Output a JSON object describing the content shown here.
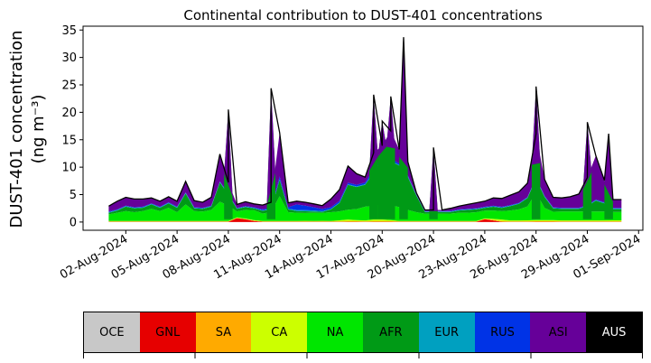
{
  "chart_data": {
    "type": "area",
    "title": "Continental contribution to DUST-401 concentrations",
    "ylabel_line1": "DUST-401 concentration",
    "ylabel_line2": "(ng m⁻³)",
    "ylim": [
      -1.5,
      35.7
    ],
    "yticks": [
      0,
      5,
      10,
      15,
      20,
      25,
      30,
      35
    ],
    "xlim": [
      "2024-07-30T12:00",
      "2024-09-01T06:00"
    ],
    "xticks": [
      "2024-08-02",
      "2024-08-05",
      "2024-08-08",
      "2024-08-11",
      "2024-08-14",
      "2024-08-17",
      "2024-08-20",
      "2024-08-23",
      "2024-08-26",
      "2024-08-29",
      "2024-09-01"
    ],
    "xtick_labels": [
      "02-Aug-2024",
      "05-Aug-2024",
      "08-Aug-2024",
      "11-Aug-2024",
      "14-Aug-2024",
      "17-Aug-2024",
      "20-Aug-2024",
      "23-Aug-2024",
      "26-Aug-2024",
      "29-Aug-2024",
      "01-Sep-2024"
    ],
    "colors": {
      "OCE": "#c8c8c8",
      "GNL": "#e60000",
      "SA": "#ffaa00",
      "CA": "#ccff00",
      "NA": "#00e600",
      "AFR": "#009a16",
      "EUR": "#00a0c0",
      "RUS": "#0033e6",
      "ASI": "#660099",
      "AUS": "#000000"
    },
    "total_color": "#000000",
    "x": [
      "2024-08-01T00",
      "2024-08-01T12",
      "2024-08-02T00",
      "2024-08-02T12",
      "2024-08-03T00",
      "2024-08-03T12",
      "2024-08-04T00",
      "2024-08-04T12",
      "2024-08-05T00",
      "2024-08-05T12",
      "2024-08-06T00",
      "2024-08-06T12",
      "2024-08-07T00",
      "2024-08-07T12",
      "2024-08-08T00",
      "2024-08-08T12",
      "2024-08-09T00",
      "2024-08-09T12",
      "2024-08-10T00",
      "2024-08-10T12",
      "2024-08-11T00",
      "2024-08-11T12",
      "2024-08-12T00",
      "2024-08-12T12",
      "2024-08-13T00",
      "2024-08-13T12",
      "2024-08-14T00",
      "2024-08-14T12",
      "2024-08-15T00",
      "2024-08-15T12",
      "2024-08-16T00",
      "2024-08-16T12",
      "2024-08-17T00",
      "2024-08-17T12",
      "2024-08-18T00",
      "2024-08-18T12",
      "2024-08-19T00",
      "2024-08-19T12",
      "2024-08-20T00",
      "2024-08-20T12",
      "2024-08-21T00",
      "2024-08-21T12",
      "2024-08-22T00",
      "2024-08-22T12",
      "2024-08-23T00",
      "2024-08-23T12",
      "2024-08-24T00",
      "2024-08-24T12",
      "2024-08-25T00",
      "2024-08-25T12",
      "2024-08-26T00",
      "2024-08-26T12",
      "2024-08-27T00",
      "2024-08-27T12",
      "2024-08-28T00",
      "2024-08-28T12",
      "2024-08-29T00",
      "2024-08-29T12",
      "2024-08-30T00",
      "2024-08-30T12",
      "2024-08-31T00"
    ],
    "series": [
      {
        "name": "OCE",
        "values": [
          0,
          0,
          0,
          0,
          0,
          0,
          0,
          0,
          0,
          0,
          0,
          0,
          0,
          0,
          0,
          0,
          0,
          0,
          0,
          0,
          0,
          0,
          0,
          0,
          0,
          0,
          0,
          0,
          0,
          0,
          0,
          0,
          0,
          0,
          0,
          0,
          0,
          0,
          0,
          0,
          0,
          0,
          0,
          0,
          0,
          0,
          0,
          0,
          0,
          0,
          0,
          0,
          0,
          0,
          0,
          0,
          0,
          0,
          0,
          0,
          0
        ]
      },
      {
        "name": "GNL",
        "values": [
          0.05,
          0.05,
          0.05,
          0.05,
          0.05,
          0.05,
          0.05,
          0.05,
          0.05,
          0.05,
          0.05,
          0.05,
          0.05,
          0.05,
          0.05,
          0.9,
          0.5,
          0.2,
          0.05,
          0.05,
          0.05,
          0.05,
          0.05,
          0.05,
          0.05,
          0.05,
          0.05,
          0.05,
          0.05,
          0.05,
          0.05,
          0.05,
          0.05,
          0.05,
          0.05,
          0.05,
          0.05,
          0.05,
          0.05,
          0.05,
          0.05,
          0.05,
          0.05,
          0.05,
          0.5,
          0.3,
          0.05,
          0.05,
          0.05,
          0.05,
          0.05,
          0.05,
          0.05,
          0.05,
          0.05,
          0.05,
          0.05,
          0.05,
          0.05,
          0.05,
          0.05
        ]
      },
      {
        "name": "SA",
        "values": [
          0.05,
          0.05,
          0.05,
          0.05,
          0.05,
          0.05,
          0.05,
          0.05,
          0.05,
          0.05,
          0.05,
          0.05,
          0.05,
          0.05,
          0.05,
          0.05,
          0.05,
          0.05,
          0.05,
          0.05,
          0.05,
          0.05,
          0.05,
          0.05,
          0.05,
          0.05,
          0.05,
          0.05,
          0.1,
          0.1,
          0.05,
          0.1,
          0.1,
          0.1,
          0.05,
          0.05,
          0.05,
          0.05,
          0.05,
          0.05,
          0.05,
          0.05,
          0.05,
          0.05,
          0.05,
          0.1,
          0.1,
          0.05,
          0.05,
          0.05,
          0.1,
          0.1,
          0.1,
          0.05,
          0.05,
          0.05,
          0.05,
          0.05,
          0.05,
          0.05,
          0.05
        ]
      },
      {
        "name": "CA",
        "values": [
          0.1,
          0.1,
          0.1,
          0.1,
          0.1,
          0.1,
          0.1,
          0.1,
          0.1,
          0.1,
          0.1,
          0.1,
          0.1,
          0.1,
          0.1,
          0.1,
          0.1,
          0.1,
          0.1,
          0.1,
          0.1,
          0.1,
          0.1,
          0.1,
          0.1,
          0.1,
          0.1,
          0.2,
          0.3,
          0.2,
          0.2,
          0.3,
          0.3,
          0.2,
          0.1,
          0.1,
          0.1,
          0.1,
          0.1,
          0.1,
          0.1,
          0.1,
          0.1,
          0.1,
          0.1,
          0.2,
          0.3,
          0.2,
          0.2,
          0.2,
          0.2,
          0.2,
          0.2,
          0.2,
          0.2,
          0.2,
          0.2,
          0.2,
          0.2,
          0.2,
          0.2
        ]
      },
      {
        "name": "NA",
        "values": [
          1.2,
          1.5,
          1.8,
          1.6,
          1.8,
          2.2,
          1.8,
          2.4,
          1.6,
          3.0,
          1.8,
          1.7,
          2.0,
          3.5,
          2.8,
          1.4,
          1.6,
          1.8,
          1.4,
          1.6,
          4.5,
          1.6,
          1.5,
          1.4,
          1.5,
          1.4,
          1.6,
          1.6,
          1.8,
          2.0,
          2.5,
          2.5,
          2.8,
          2.7,
          2.5,
          2.0,
          1.6,
          1.4,
          1.4,
          1.4,
          1.4,
          1.5,
          1.5,
          1.6,
          1.4,
          1.6,
          1.5,
          1.8,
          2.0,
          2.5,
          5.0,
          2.2,
          1.5,
          1.6,
          1.6,
          1.6,
          1.6,
          1.6,
          1.6,
          1.5,
          1.5
        ]
      },
      {
        "name": "AFR",
        "values": [
          0.3,
          0.4,
          0.8,
          0.7,
          0.6,
          0.8,
          0.6,
          0.8,
          0.8,
          2.0,
          0.5,
          0.5,
          0.6,
          3.5,
          2.0,
          0.6,
          0.5,
          0.3,
          0.5,
          0.5,
          3.0,
          0.5,
          0.3,
          0.3,
          0.2,
          0.2,
          0.5,
          1.5,
          4.5,
          4.0,
          4.0,
          6.0,
          8.0,
          8.0,
          7.5,
          6.0,
          3.0,
          0.3,
          0.3,
          0.3,
          0.3,
          0.4,
          0.5,
          0.5,
          0.5,
          0.7,
          0.6,
          0.8,
          1.0,
          1.5,
          2.5,
          2.0,
          0.6,
          0.5,
          0.5,
          0.5,
          1.0,
          2.0,
          1.5,
          0.5,
          0.5
        ]
      },
      {
        "name": "EUR",
        "values": [
          0.1,
          0.1,
          0.1,
          0.1,
          0.1,
          0.1,
          0.1,
          0.1,
          0.1,
          0.1,
          0.1,
          0.1,
          0.1,
          0.1,
          0.1,
          0.1,
          0.1,
          0.1,
          0.1,
          0.1,
          0.1,
          0.1,
          0.2,
          0.2,
          0.2,
          0.1,
          0.1,
          0.1,
          0.1,
          0.1,
          0.1,
          0.1,
          0.1,
          0.1,
          0.1,
          0.1,
          0.1,
          0.1,
          0.1,
          0.1,
          0.1,
          0.1,
          0.1,
          0.1,
          0.1,
          0.1,
          0.1,
          0.1,
          0.1,
          0.1,
          0.1,
          0.1,
          0.1,
          0.1,
          0.1,
          0.1,
          0.1,
          0.1,
          0.1,
          0.1,
          0.1
        ]
      },
      {
        "name": "RUS",
        "values": [
          0.1,
          0.1,
          0.1,
          0.1,
          0.1,
          0.1,
          0.1,
          0.1,
          0.1,
          0.1,
          0.1,
          0.1,
          0.1,
          0.1,
          0.1,
          0.1,
          0.1,
          0.1,
          0.2,
          0.2,
          0.5,
          0.3,
          1.0,
          0.8,
          0.6,
          0.4,
          0.3,
          0.3,
          0.3,
          0.3,
          0.3,
          0.5,
          0.5,
          0.4,
          0.3,
          0.2,
          0.1,
          0.1,
          0.1,
          0.1,
          0.1,
          0.1,
          0.1,
          0.1,
          0.1,
          0.1,
          0.1,
          0.1,
          0.1,
          0.1,
          0.1,
          0.1,
          0.1,
          0.1,
          0.1,
          0.1,
          0.1,
          0.1,
          0.1,
          0.1,
          0.1
        ]
      },
      {
        "name": "ASI",
        "values": [
          1.0,
          1.5,
          1.5,
          1.5,
          1.4,
          1.0,
          1.0,
          1.0,
          1.0,
          2.0,
          1.2,
          1.0,
          1.5,
          5.0,
          2.0,
          0.8,
          0.8,
          0.6,
          0.8,
          1.0,
          8.0,
          0.8,
          0.6,
          0.6,
          0.6,
          0.6,
          1.5,
          2.0,
          3.0,
          2.0,
          1.0,
          3.0,
          2.0,
          5.0,
          2.5,
          2.5,
          0.3,
          0.2,
          0.2,
          0.2,
          0.5,
          0.6,
          0.8,
          1.0,
          1.0,
          1.5,
          1.5,
          1.8,
          2.0,
          2.5,
          8.0,
          3.0,
          1.8,
          1.8,
          2.0,
          2.5,
          5.0,
          8.0,
          4.0,
          1.5,
          1.5
        ]
      },
      {
        "name": "AUS",
        "values": [
          0,
          0,
          0,
          0,
          0,
          0,
          0,
          0,
          0,
          0,
          0,
          0,
          0,
          0,
          0,
          0,
          0,
          0,
          0,
          0,
          0,
          0,
          0,
          0,
          0,
          0,
          0,
          0,
          0,
          0,
          0,
          0,
          0,
          0,
          0,
          0,
          0,
          0,
          0,
          0,
          0,
          0,
          0,
          0,
          0,
          0,
          0,
          0,
          0,
          0,
          0,
          0,
          0,
          0,
          0,
          0,
          0,
          0,
          0,
          0,
          0
        ]
      }
    ],
    "total_values": [
      2.9,
      3.8,
      4.5,
      4.2,
      4.2,
      4.4,
      3.8,
      4.6,
      3.8,
      7.4,
      3.9,
      3.6,
      4.5,
      12.4,
      7.2,
      3.2,
      3.7,
      3.3,
      3.1,
      3.6,
      16.3,
      3.5,
      3.8,
      3.6,
      3.3,
      3.0,
      4.2,
      5.9,
      10.2,
      8.8,
      8.2,
      12.6,
      13.9,
      16.6,
      13.2,
      11.0,
      5.3,
      2.2,
      2.2,
      2.2,
      2.5,
      2.9,
      3.2,
      3.5,
      3.8,
      4.4,
      4.3,
      4.9,
      5.5,
      7.1,
      16.1,
      7.8,
      4.5,
      4.4,
      4.6,
      5.1,
      8.1,
      12.1,
      7.6,
      4.1,
      4.1
    ],
    "spikes": [
      {
        "x": "2024-08-08T00",
        "value": 20.5
      },
      {
        "x": "2024-08-10T12",
        "value": 24.4
      },
      {
        "x": "2024-08-16T12",
        "value": 23.2
      },
      {
        "x": "2024-08-17T00",
        "value": 18.4
      },
      {
        "x": "2024-08-17T12",
        "value": 22.9
      },
      {
        "x": "2024-08-18T06",
        "value": 33.7
      },
      {
        "x": "2024-08-20T00",
        "value": 13.6
      },
      {
        "x": "2024-08-26T00",
        "value": 24.7
      },
      {
        "x": "2024-08-29T00",
        "value": 18.2
      },
      {
        "x": "2024-08-30T06",
        "value": 16.1
      }
    ],
    "legend_items": [
      {
        "label": "OCE",
        "color": "#c8c8c8",
        "text_color": "#000000"
      },
      {
        "label": "GNL",
        "color": "#e60000",
        "text_color": "#000000"
      },
      {
        "label": "SA",
        "color": "#ffaa00",
        "text_color": "#000000"
      },
      {
        "label": "CA",
        "color": "#ccff00",
        "text_color": "#000000"
      },
      {
        "label": "NA",
        "color": "#00e600",
        "text_color": "#000000"
      },
      {
        "label": "AFR",
        "color": "#009a16",
        "text_color": "#000000"
      },
      {
        "label": "EUR",
        "color": "#00a0c0",
        "text_color": "#000000"
      },
      {
        "label": "RUS",
        "color": "#0033e6",
        "text_color": "#000000"
      },
      {
        "label": "ASI",
        "color": "#660099",
        "text_color": "#000000"
      },
      {
        "label": "AUS",
        "color": "#000000",
        "text_color": "#ffffff"
      }
    ]
  }
}
